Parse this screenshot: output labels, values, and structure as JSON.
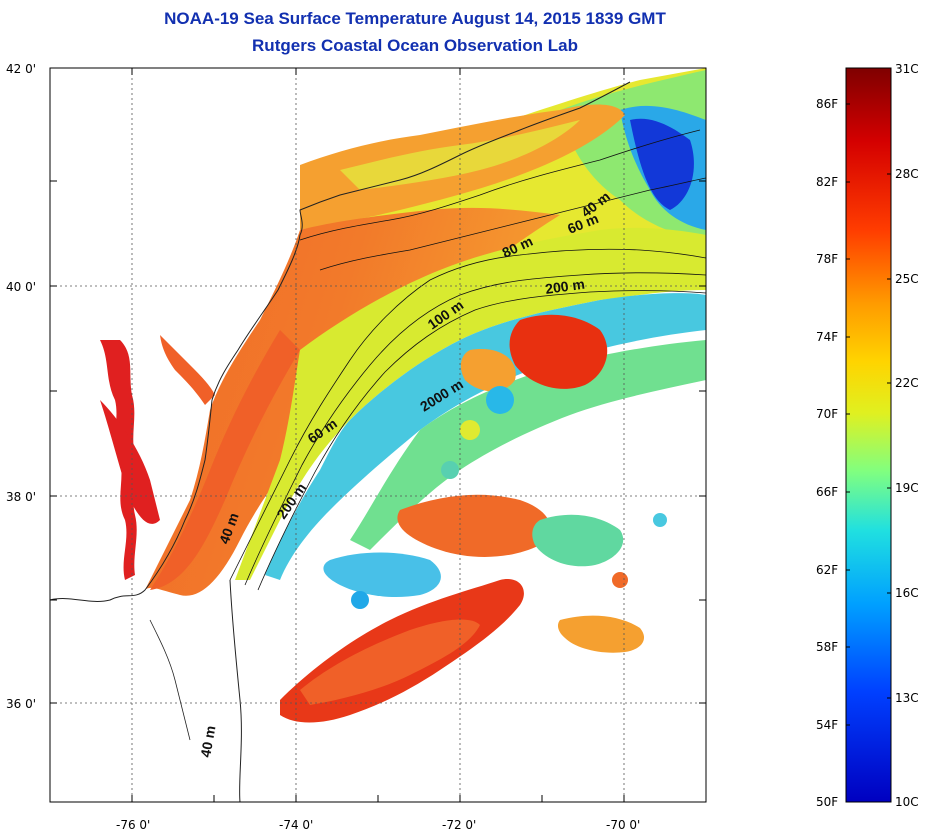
{
  "title": "NOAA-19 Sea Surface Temperature August 14, 2015 1839 GMT",
  "subtitle": "Rutgers Coastal Ocean Observation Lab",
  "map": {
    "lat_labels": [
      "42 0'",
      "40 0'",
      "38 0'",
      "36 0'"
    ],
    "lon_labels": [
      "-76 0'",
      "-74 0'",
      "-72 0'",
      "-70 0'"
    ],
    "contour_labels": [
      "40 m",
      "60 m",
      "80 m",
      "200 m",
      "100 m",
      "2000 m",
      "60 m",
      "200 m",
      "40 m",
      "40 m"
    ]
  },
  "colorbar": {
    "f_labels": [
      "86F",
      "82F",
      "78F",
      "74F",
      "70F",
      "66F",
      "62F",
      "58F",
      "54F",
      "50F"
    ],
    "c_labels": [
      "31C",
      "28C",
      "25C",
      "22C",
      "19C",
      "16C",
      "13C",
      "10C"
    ]
  },
  "colors": {
    "title": "#1230b0",
    "scale": [
      "#7f0000",
      "#d40000",
      "#ff3c00",
      "#ff9a00",
      "#ffd400",
      "#e0f020",
      "#80ff80",
      "#20e0e0",
      "#00a0ff",
      "#0040ff",
      "#0000c0"
    ]
  }
}
